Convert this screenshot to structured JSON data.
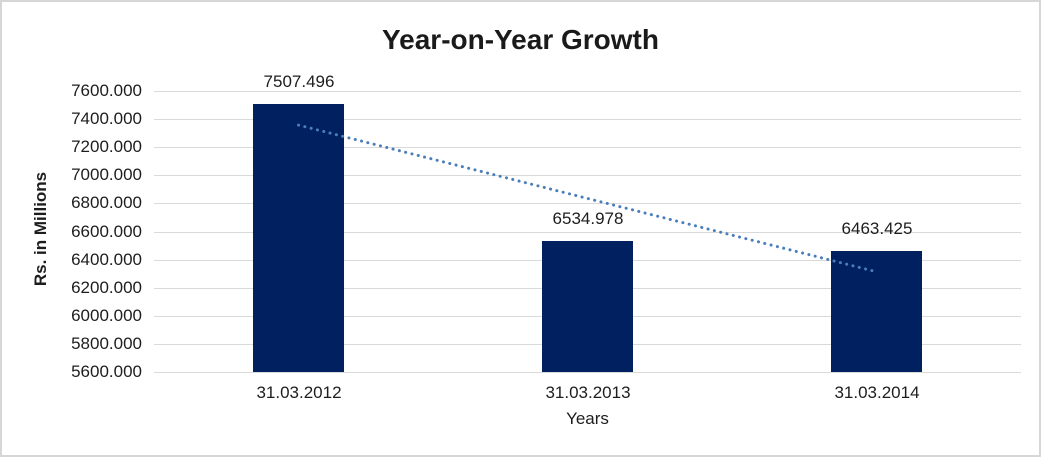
{
  "window": {
    "background_color": "#ffffff",
    "border_color": "#d6d6d6"
  },
  "chart_data": {
    "type": "bar",
    "title": "Year-on-Year Growth",
    "xlabel": "Years",
    "ylabel": "Rs. in Millions",
    "categories": [
      "31.03.2012",
      "31.03.2013",
      "31.03.2014"
    ],
    "values": [
      7507.496,
      6534.978,
      6463.425
    ],
    "data_labels": [
      "7507.496",
      "6534.978",
      "6463.425"
    ],
    "ylim": [
      5600,
      7600
    ],
    "ytick_step": 200,
    "ytick_labels": [
      "7600.000",
      "7400.000",
      "7200.000",
      "7000.000",
      "6800.000",
      "6600.000",
      "6400.000",
      "6200.000",
      "6000.000",
      "5800.000",
      "5600.000"
    ],
    "grid": "horizontal",
    "legend": "none",
    "bar_color": "#002060",
    "gridline_color": "#d9d9d9",
    "text_color": "#1d1d1d",
    "trendline": {
      "kind": "linear",
      "style": "dotted",
      "color": "#4a7ebb",
      "start_value": 7357.34,
      "end_value": 6313.27
    }
  }
}
